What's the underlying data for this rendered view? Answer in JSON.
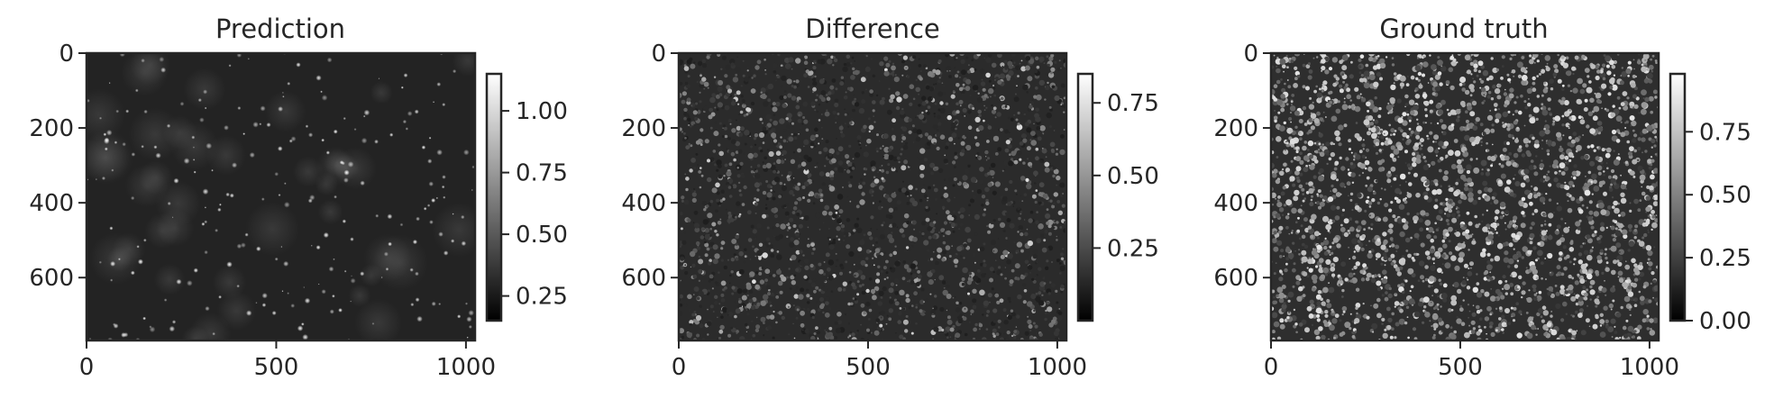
{
  "chart_data": [
    {
      "type": "heatmap",
      "title": "Prediction",
      "xlabel": "",
      "ylabel": "",
      "x_range": [
        0,
        1024
      ],
      "y_range": [
        768,
        0
      ],
      "x_ticks": [
        0,
        500,
        1000
      ],
      "y_ticks": [
        0,
        200,
        400,
        600
      ],
      "colormap": "gray",
      "colorbar": {
        "range": [
          0.15,
          1.15
        ],
        "ticks": [
          0.25,
          0.5,
          0.75,
          1.0
        ],
        "tick_labels": [
          "0.25",
          "0.50",
          "0.75",
          "1.00"
        ]
      },
      "content": "dark background with sparse bright dots"
    },
    {
      "type": "heatmap",
      "title": "Difference",
      "xlabel": "",
      "ylabel": "",
      "x_range": [
        0,
        1024
      ],
      "y_range": [
        768,
        0
      ],
      "x_ticks": [
        0,
        500,
        1000
      ],
      "y_ticks": [
        0,
        200,
        400,
        600
      ],
      "colormap": "gray",
      "colorbar": {
        "range": [
          0.0,
          0.85
        ],
        "ticks": [
          0.25,
          0.5,
          0.75
        ],
        "tick_labels": [
          "0.25",
          "0.50",
          "0.75"
        ]
      },
      "content": "dense field of small grey spots"
    },
    {
      "type": "heatmap",
      "title": "Ground truth",
      "xlabel": "",
      "ylabel": "",
      "x_range": [
        0,
        1024
      ],
      "y_range": [
        768,
        0
      ],
      "x_ticks": [
        0,
        500,
        1000
      ],
      "y_ticks": [
        0,
        200,
        400,
        600
      ],
      "colormap": "gray",
      "colorbar": {
        "range": [
          0.0,
          0.98
        ],
        "ticks": [
          0.0,
          0.25,
          0.5,
          0.75
        ],
        "tick_labels": [
          "0.00",
          "0.25",
          "0.50",
          "0.75"
        ]
      },
      "content": "dense field of medium-bright droplets"
    }
  ]
}
